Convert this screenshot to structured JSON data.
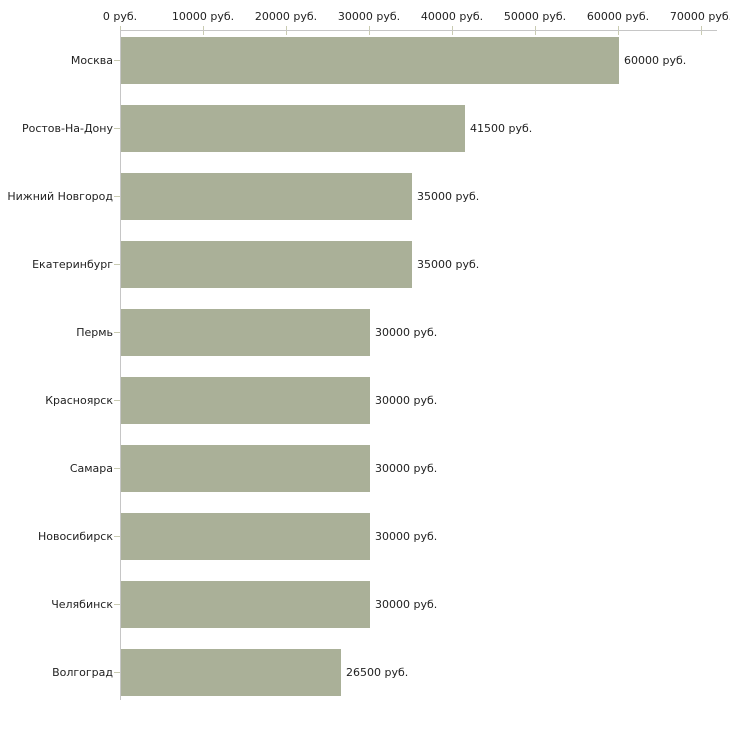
{
  "chart_data": {
    "type": "bar",
    "orientation": "horizontal",
    "title": "",
    "categories": [
      "Москва",
      "Ростов-На-Дону",
      "Нижний Новгород",
      "Екатеринбург",
      "Пермь",
      "Красноярск",
      "Самара",
      "Новосибирск",
      "Челябинск",
      "Волгоград"
    ],
    "values": [
      60000,
      41500,
      35000,
      35000,
      30000,
      30000,
      30000,
      30000,
      30000,
      26500
    ],
    "value_labels": [
      "60000 руб.",
      "41500 руб.",
      "35000 руб.",
      "35000 руб.",
      "30000 руб.",
      "30000 руб.",
      "30000 руб.",
      "30000 руб.",
      "30000 руб.",
      "26500 руб."
    ],
    "unit": "руб.",
    "x_axis": {
      "position": "top",
      "range": [
        0,
        70000
      ],
      "ticks": [
        0,
        10000,
        20000,
        30000,
        40000,
        50000,
        60000,
        70000
      ],
      "tick_labels": [
        "0 руб.",
        "10000 руб.",
        "20000 руб.",
        "30000 руб.",
        "40000 руб.",
        "50000 руб.",
        "60000 руб.",
        "70000 руб."
      ]
    },
    "grid": false,
    "legend": "none",
    "colors": {
      "bar": "#aab098",
      "axis_line": "#c6c6c6",
      "tick_mark": "#c9cbb2",
      "text": "#222222",
      "background": "#ffffff"
    }
  }
}
